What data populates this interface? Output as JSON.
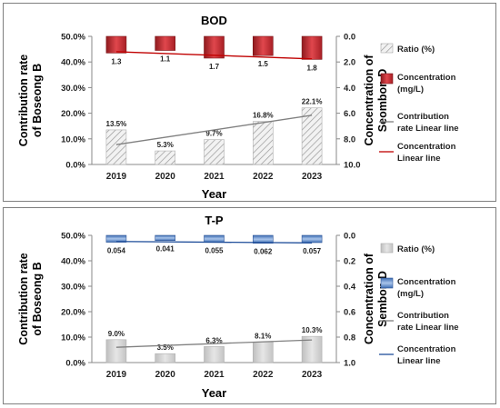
{
  "chart_data": [
    {
      "type": "bar",
      "title": "BOD",
      "xlabel": "Year",
      "ylabel_left": "Contribution rate of Boseong B",
      "ylabel_right": "Concentration of Seombon D",
      "categories": [
        "2019",
        "2020",
        "2021",
        "2022",
        "2023"
      ],
      "left_axis": {
        "min": 0,
        "max": 50,
        "ticks": [
          "0.0%",
          "10.0%",
          "20.0%",
          "30.0%",
          "40.0%",
          "50.0%"
        ]
      },
      "right_axis": {
        "min": 0,
        "max": 10,
        "inverted": true,
        "ticks": [
          "0.0",
          "2.0",
          "4.0",
          "6.0",
          "8.0",
          "10.0"
        ]
      },
      "series": [
        {
          "name": "Ratio (%)",
          "axis": "left",
          "kind": "bar",
          "style": "hatched",
          "values": [
            13.5,
            5.3,
            9.7,
            16.8,
            22.1
          ],
          "labels": [
            "13.5%",
            "5.3%",
            "9.7%",
            "16.8%",
            "22.1%"
          ]
        },
        {
          "name": "Concentration (mg/L)",
          "axis": "right",
          "kind": "bar",
          "color": "#c0262d",
          "values": [
            1.3,
            1.1,
            1.7,
            1.5,
            1.8
          ],
          "labels": [
            "1.3",
            "1.1",
            "1.7",
            "1.5",
            "1.8"
          ]
        },
        {
          "name": "Contribution rate Linear line",
          "kind": "trendline",
          "of": "Ratio (%)",
          "color": "#808080"
        },
        {
          "name": "Concentration Linear line",
          "kind": "trendline",
          "of": "Concentration (mg/L)",
          "color": "#c00000"
        }
      ],
      "legend_position": "right"
    },
    {
      "type": "bar",
      "title": "T-P",
      "xlabel": "Year",
      "ylabel_left": "Contribution rate of Boseong B",
      "ylabel_right": "Concentration of Sembon D",
      "categories": [
        "2019",
        "2020",
        "2021",
        "2022",
        "2023"
      ],
      "left_axis": {
        "min": 0,
        "max": 50,
        "ticks": [
          "0.0%",
          "10.0%",
          "20.0%",
          "30.0%",
          "40.0%",
          "50.0%"
        ]
      },
      "right_axis": {
        "min": 0,
        "max": 1,
        "inverted": true,
        "ticks": [
          "0.0",
          "0.2",
          "0.4",
          "0.6",
          "0.8",
          "1.0"
        ]
      },
      "series": [
        {
          "name": "Ratio (%)",
          "axis": "left",
          "kind": "bar",
          "style": "gray",
          "values": [
            9.0,
            3.5,
            6.3,
            8.1,
            10.3
          ],
          "labels": [
            "9.0%",
            "3.5%",
            "6.3%",
            "8.1%",
            "10.3%"
          ]
        },
        {
          "name": "Concentration (mg/L)",
          "axis": "right",
          "kind": "bar",
          "color": "#4f7fbf",
          "values": [
            0.054,
            0.041,
            0.055,
            0.062,
            0.057
          ],
          "labels": [
            "0.054",
            "0.041",
            "0.055",
            "0.062",
            "0.057"
          ]
        },
        {
          "name": "Contribution rate Linear line",
          "kind": "trendline",
          "of": "Ratio (%)",
          "color": "#808080"
        },
        {
          "name": "Concentration Linear line",
          "kind": "trendline",
          "of": "Concentration (mg/L)",
          "color": "#1f4e9a"
        }
      ],
      "legend_position": "right"
    }
  ]
}
